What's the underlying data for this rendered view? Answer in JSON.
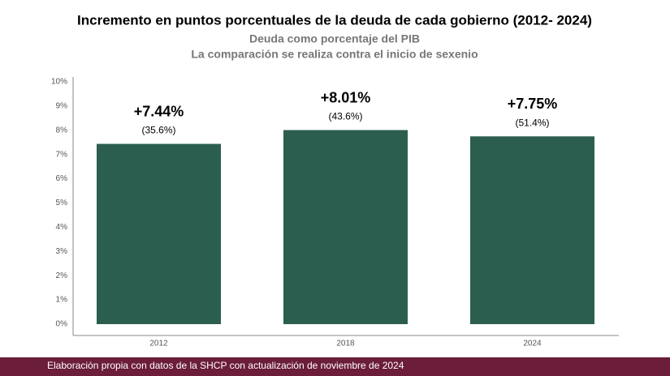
{
  "chart_data": {
    "type": "bar",
    "title": "Incremento en puntos porcentuales de la deuda de cada gobierno (2012- 2024)",
    "subtitle": [
      "Deuda como porcentaje del PIB",
      "La comparación se realiza contra el inicio de sexenio"
    ],
    "categories": [
      "2012",
      "2018",
      "2024"
    ],
    "values": [
      7.44,
      8.01,
      7.75
    ],
    "value_labels": [
      "+7.44%",
      "+8.01%",
      "+7.75%"
    ],
    "annotations": [
      "(35.6%)",
      "(43.6%)",
      "(51.4%)"
    ],
    "color": "#2b5e4e",
    "ylim": [
      0,
      10
    ],
    "yticks": [
      {
        "value": 0,
        "label": "0%"
      },
      {
        "value": 1,
        "label": "1%"
      },
      {
        "value": 2,
        "label": "2%"
      },
      {
        "value": 3,
        "label": "3%"
      },
      {
        "value": 4,
        "label": "4%"
      },
      {
        "value": 5,
        "label": "5%"
      },
      {
        "value": 6,
        "label": "6%"
      },
      {
        "value": 7,
        "label": "7%"
      },
      {
        "value": 8,
        "label": "8%"
      },
      {
        "value": 9,
        "label": "9%"
      },
      {
        "value": 10,
        "label": "10%"
      }
    ],
    "grid": false,
    "source": "Elaboración propia con datos de la SHCP con actualización de noviembre de 2024"
  }
}
